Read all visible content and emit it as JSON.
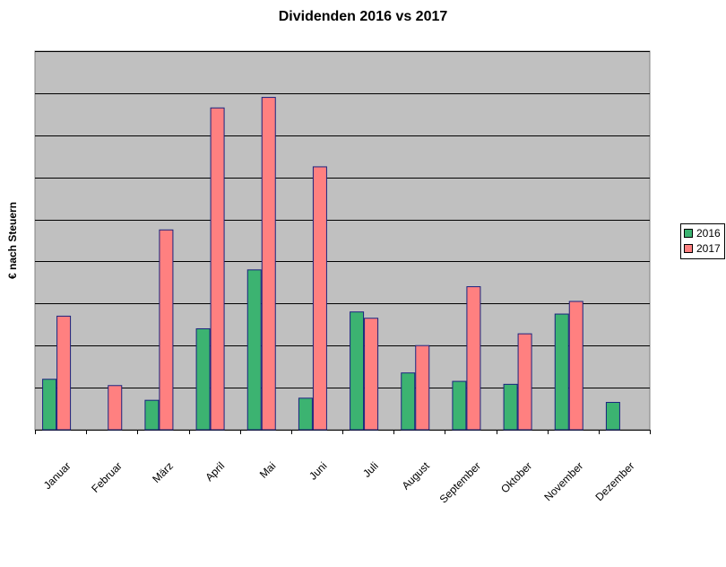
{
  "chart_data": {
    "type": "bar",
    "title": "Dividenden 2016 vs 2017",
    "ylabel": "€ nach Steuern",
    "xlabel": "",
    "categories": [
      "Januar",
      "Februar",
      "März",
      "April",
      "Mai",
      "Juni",
      "Juli",
      "August",
      "September",
      "Oktober",
      "November",
      "Dezember"
    ],
    "series": [
      {
        "name": "2016",
        "color": "#3cb371",
        "values": [
          1.2,
          0,
          0.7,
          2.4,
          3.8,
          0.75,
          2.8,
          1.35,
          1.15,
          1.08,
          2.75,
          0.65
        ]
      },
      {
        "name": "2017",
        "color": "#ff8080",
        "values": [
          2.7,
          1.05,
          4.75,
          7.65,
          7.9,
          6.25,
          2.65,
          2.0,
          3.4,
          2.28,
          3.05,
          0
        ]
      }
    ],
    "ylim": [
      0,
      9
    ],
    "grid": true,
    "legend_position": "right",
    "plot_background": "#c0c0c0"
  }
}
